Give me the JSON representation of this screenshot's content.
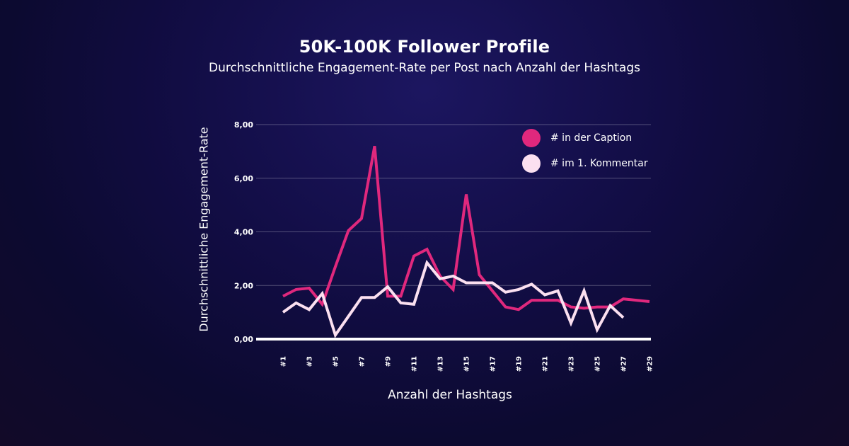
{
  "chart_data": {
    "type": "line",
    "title": "50K-100K Follower Profile",
    "subtitle": "Durchschnittliche Engagement-Rate per Post nach Anzahl der Hashtags",
    "xlabel": "Anzahl der Hashtags",
    "ylabel": "Durchschnittliche Engagement-Rate",
    "ylim": [
      0,
      8
    ],
    "yticks": [
      "0,00",
      "2,00",
      "4,00",
      "6,00",
      "8,00"
    ],
    "x": [
      1,
      2,
      3,
      4,
      5,
      6,
      7,
      8,
      9,
      10,
      11,
      12,
      13,
      14,
      15,
      16,
      17,
      18,
      19,
      20,
      21,
      22,
      23,
      24,
      25,
      26,
      27,
      28,
      29
    ],
    "xtick_labels": [
      "#1",
      "#3",
      "#5",
      "#7",
      "#9",
      "#11",
      "#13",
      "#15",
      "#17",
      "#19",
      "#21",
      "#23",
      "#25",
      "#27",
      "#29"
    ],
    "legend_position": "top-right",
    "grid": true,
    "series": [
      {
        "name": "# in der Caption",
        "color": "#e0287d",
        "values": [
          1.6,
          1.85,
          1.9,
          1.3,
          2.7,
          4.05,
          4.5,
          7.2,
          1.6,
          1.6,
          3.1,
          3.35,
          2.35,
          1.85,
          5.4,
          2.4,
          1.8,
          1.2,
          1.1,
          1.45,
          1.45,
          1.45,
          1.2,
          1.15,
          1.2,
          1.2,
          1.5,
          1.45,
          1.4
        ]
      },
      {
        "name": "# im 1. Kommentar",
        "color": "#fbe0f0",
        "values": [
          1.0,
          1.35,
          1.1,
          1.7,
          0.15,
          0.85,
          1.55,
          1.55,
          1.95,
          1.35,
          1.3,
          2.85,
          2.25,
          2.35,
          2.1,
          2.1,
          2.1,
          1.75,
          1.85,
          2.05,
          1.65,
          1.8,
          0.6,
          1.8,
          0.35,
          1.25,
          0.8,
          null,
          null
        ]
      }
    ]
  }
}
